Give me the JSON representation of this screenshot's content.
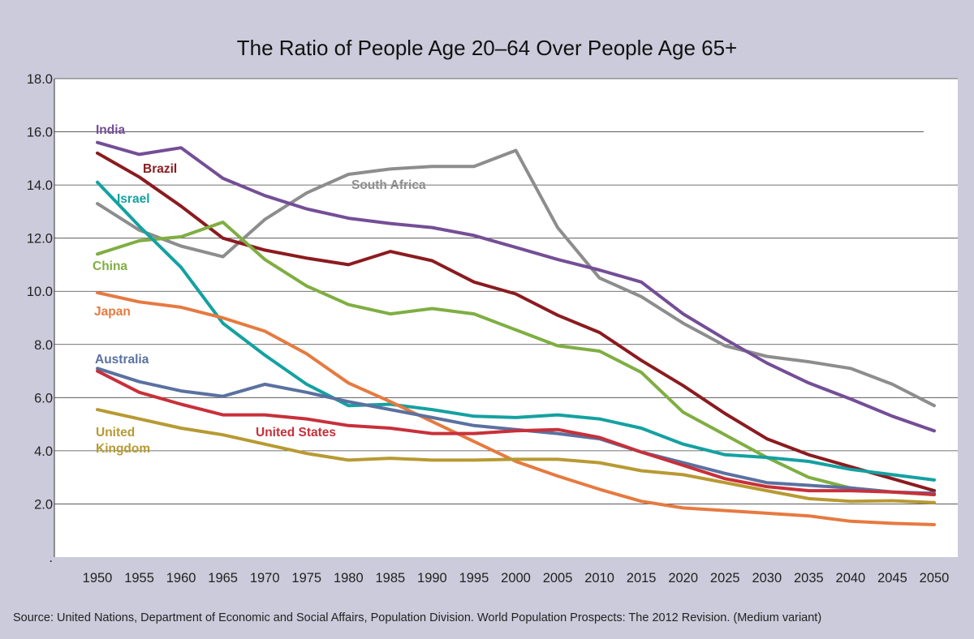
{
  "chart_data": {
    "type": "line",
    "title": "The Ratio of People Age 20–64 Over People Age 65+",
    "xlabel": "",
    "ylabel": "",
    "x": [
      1950,
      1955,
      1960,
      1965,
      1970,
      1975,
      1980,
      1985,
      1990,
      1995,
      2000,
      2005,
      2010,
      2015,
      2020,
      2025,
      2030,
      2035,
      2040,
      2045,
      2050
    ],
    "x_tick_labels": [
      "1950",
      "1955",
      "1960",
      "1965",
      "1970",
      "1975",
      "1980",
      "1985",
      "1990",
      "1995",
      "2000",
      "2005",
      "2010",
      "2015",
      "2020",
      "2025",
      "2030",
      "2035",
      "2040",
      "2045",
      "2050"
    ],
    "ylim": [
      0,
      18
    ],
    "y_ticks": [
      0,
      2,
      4,
      6,
      8,
      10,
      12,
      14,
      16,
      18
    ],
    "y_tick_labels": [
      ".",
      "2.0",
      "4.0",
      "6.0",
      "8.0",
      "10.0",
      "12.0",
      "14.0",
      "16.0",
      "18.0"
    ],
    "grid": "horizontal",
    "legend": "inline labels",
    "series": [
      {
        "name": "South Africa",
        "color": "#8d8d8d",
        "values": [
          13.3,
          12.3,
          11.7,
          11.3,
          12.7,
          13.7,
          14.4,
          14.6,
          14.7,
          14.7,
          15.3,
          12.4,
          10.5,
          9.8,
          8.8,
          7.95,
          7.55,
          7.35,
          7.1,
          6.5,
          5.7
        ]
      },
      {
        "name": "India",
        "color": "#744e96",
        "values": [
          15.6,
          15.15,
          15.4,
          14.25,
          13.6,
          13.1,
          12.75,
          12.55,
          12.4,
          12.1,
          11.65,
          11.2,
          10.8,
          10.35,
          9.15,
          8.2,
          7.3,
          6.55,
          5.95,
          5.3,
          4.75
        ]
      },
      {
        "name": "Brazil",
        "color": "#8b1b1f",
        "values": [
          15.2,
          14.3,
          13.2,
          12.0,
          11.55,
          11.25,
          11.0,
          11.5,
          11.15,
          10.35,
          9.9,
          9.1,
          8.45,
          7.4,
          6.45,
          5.4,
          4.45,
          3.85,
          3.4,
          2.95,
          2.5
        ]
      },
      {
        "name": "China",
        "color": "#7fae42",
        "values": [
          11.4,
          11.9,
          12.05,
          12.6,
          11.2,
          10.2,
          9.5,
          9.15,
          9.35,
          9.15,
          8.55,
          7.95,
          7.75,
          6.95,
          5.45,
          4.6,
          3.75,
          3.0,
          2.6,
          2.45,
          2.35
        ]
      },
      {
        "name": "Israel",
        "color": "#14a1a1",
        "values": [
          14.1,
          12.45,
          10.9,
          8.8,
          7.6,
          6.5,
          5.7,
          5.75,
          5.55,
          5.3,
          5.25,
          5.35,
          5.2,
          4.85,
          4.25,
          3.85,
          3.75,
          3.6,
          3.3,
          3.1,
          2.9
        ]
      },
      {
        "name": "Japan",
        "color": "#e67a40",
        "values": [
          9.95,
          9.6,
          9.4,
          9.0,
          8.5,
          7.65,
          6.55,
          5.85,
          5.1,
          4.35,
          3.6,
          3.05,
          2.55,
          2.1,
          1.85,
          1.75,
          1.65,
          1.55,
          1.35,
          1.27,
          1.22
        ]
      },
      {
        "name": "Australia",
        "color": "#5a71a0",
        "values": [
          7.1,
          6.6,
          6.25,
          6.05,
          6.5,
          6.2,
          5.85,
          5.55,
          5.25,
          4.95,
          4.8,
          4.65,
          4.45,
          3.95,
          3.55,
          3.15,
          2.8,
          2.7,
          2.6,
          2.45,
          2.4
        ]
      },
      {
        "name": "United States",
        "color": "#c8303a",
        "values": [
          7.0,
          6.2,
          5.75,
          5.35,
          5.35,
          5.2,
          4.95,
          4.85,
          4.65,
          4.65,
          4.75,
          4.8,
          4.5,
          3.95,
          3.45,
          2.95,
          2.65,
          2.5,
          2.5,
          2.45,
          2.35
        ]
      },
      {
        "name": "United Kingdom",
        "color": "#b79a32",
        "values": [
          5.55,
          5.2,
          4.85,
          4.6,
          4.25,
          3.9,
          3.65,
          3.72,
          3.65,
          3.65,
          3.68,
          3.68,
          3.55,
          3.25,
          3.1,
          2.8,
          2.5,
          2.2,
          2.1,
          2.12,
          2.05
        ]
      }
    ]
  },
  "labels": {
    "india": "India",
    "brazil": "Brazil",
    "south_africa": "South Africa",
    "israel": "Israel",
    "china": "China",
    "japan": "Japan",
    "australia": "Australia",
    "united_states": "United States",
    "united_kingdom_line1": "United",
    "united_kingdom_line2": "Kingdom"
  },
  "source": "Source: United Nations, Department of Economic and Social Affairs, Population Division. World Population Prospects: The 2012 Revision. (Medium variant)"
}
